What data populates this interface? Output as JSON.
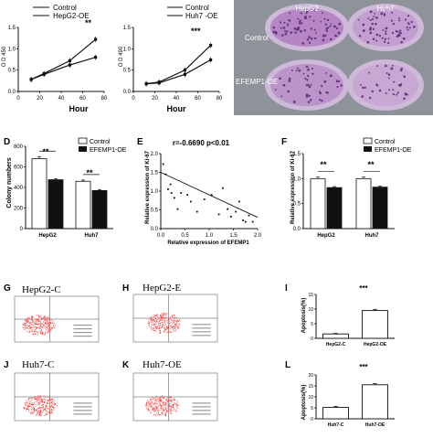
{
  "colors": {
    "control": "#ffffff",
    "oe": "#111111",
    "axis": "#111111",
    "scatter": "#ff2a2a",
    "plate_rim": "#cdb9d8",
    "plate_fill": "#b07dc0",
    "photo_bg": "#9a9ea4"
  },
  "panel_b": {
    "legend_control": "Control",
    "legend_oe": "HepG2-OE",
    "ylabel": "O D 450",
    "xlabel": "Hour",
    "yticks": [
      "0.0",
      "0.5",
      "1.0",
      "1.5"
    ],
    "xticks": [
      "0",
      "20",
      "40",
      "60",
      "80"
    ],
    "sig": "**"
  },
  "panel_c": {
    "legend_control": "Control",
    "legend_oe": "Huh7 -OE",
    "ylabel": "O D 490",
    "xlabel": "Hour",
    "yticks": [
      "0.0",
      "0.5",
      "1.0",
      "1.5"
    ],
    "xticks": [
      "0",
      "20",
      "40",
      "60",
      "80"
    ],
    "sig": "***"
  },
  "panel_photo": {
    "col1": "HepG2",
    "col2": "Huh7",
    "row1": "Control",
    "row2": "EFEMP1-OE"
  },
  "panel_d": {
    "letter": "D",
    "ylabel": "Colony numbers",
    "legend_control": "Control",
    "legend_oe": "EFEMP1-OE",
    "sig1": "**",
    "sig2": "**",
    "yticks": [
      "0",
      "200",
      "400",
      "600",
      "800"
    ]
  },
  "panel_e": {
    "letter": "E",
    "stat": "r=-0.6690 p<0.01",
    "ylabel": "Relative expression of Ki-67",
    "xlabel": "Relative expression of EFEMP1",
    "yticks": [
      "0.0",
      "0.5",
      "1.0",
      "1.5",
      "2.0"
    ],
    "xticks": [
      "0.0",
      "0.5",
      "1.0",
      "1.5",
      "2.0"
    ]
  },
  "panel_f": {
    "letter": "F",
    "ylabel": "Relative expression of Ki-67",
    "legend_control": "Control",
    "legend_oe": "EFEMP1-OE",
    "sig1": "**",
    "sig2": "**",
    "yticks": [
      "0.0",
      "0.5",
      "1.0",
      "1.5"
    ]
  },
  "panel_g": {
    "letter": "G",
    "title": "HepG2-C"
  },
  "panel_h": {
    "letter": "H",
    "title": "HepG2-E"
  },
  "panel_i": {
    "letter": "I",
    "ylabel": "Apoptosis(%)",
    "sig": "***",
    "yticks": [
      "0",
      "5",
      "10",
      "15"
    ]
  },
  "panel_j": {
    "letter": "J",
    "title": "Huh7-C"
  },
  "panel_k": {
    "letter": "K",
    "title": "Huh7-OE"
  },
  "panel_l": {
    "letter": "L",
    "ylabel": "Apoptosis(%)",
    "sig": "***",
    "yticks": [
      "0",
      "5",
      "10",
      "15",
      "20"
    ]
  },
  "chart_data": [
    {
      "panel": "B",
      "type": "line",
      "xlabel": "Hour",
      "ylabel": "O D 450",
      "xlim": [
        0,
        80
      ],
      "ylim": [
        0,
        1.5
      ],
      "series": [
        {
          "name": "Control",
          "x": [
            12,
            24,
            48,
            72
          ],
          "y": [
            0.28,
            0.42,
            0.72,
            1.22
          ]
        },
        {
          "name": "HepG2-OE",
          "x": [
            12,
            24,
            48,
            72
          ],
          "y": [
            0.28,
            0.4,
            0.62,
            0.8
          ]
        }
      ]
    },
    {
      "panel": "C",
      "type": "line",
      "xlabel": "Hour",
      "ylabel": "O D 490",
      "xlim": [
        0,
        80
      ],
      "ylim": [
        0,
        1.5
      ],
      "series": [
        {
          "name": "Control",
          "x": [
            12,
            24,
            48,
            72
          ],
          "y": [
            0.18,
            0.22,
            0.5,
            1.08
          ]
        },
        {
          "name": "Huh7 -OE",
          "x": [
            12,
            24,
            48,
            72
          ],
          "y": [
            0.18,
            0.2,
            0.4,
            0.74
          ]
        }
      ]
    },
    {
      "panel": "D",
      "type": "bar",
      "ylabel": "Colony numbers",
      "categories": [
        "HepG2",
        "Huh7"
      ],
      "ylim": [
        0,
        800
      ],
      "series": [
        {
          "name": "Control",
          "values": [
            680,
            460
          ],
          "errors": [
            20,
            12
          ]
        },
        {
          "name": "EFEMP1-OE",
          "values": [
            475,
            370
          ],
          "errors": [
            10,
            10
          ]
        }
      ]
    },
    {
      "panel": "E",
      "type": "scatter",
      "xlabel": "Relative expression of EFEMP1",
      "ylabel": "Relative expression of Ki-67",
      "xlim": [
        0,
        2
      ],
      "ylim": [
        0,
        2
      ],
      "points": [
        [
          0.05,
          1.72
        ],
        [
          0.1,
          1.45
        ],
        [
          0.15,
          1.05
        ],
        [
          0.2,
          1.18
        ],
        [
          0.22,
          0.95
        ],
        [
          0.28,
          0.82
        ],
        [
          0.35,
          0.52
        ],
        [
          0.42,
          0.95
        ],
        [
          0.55,
          0.9
        ],
        [
          0.62,
          0.72
        ],
        [
          0.75,
          0.45
        ],
        [
          0.9,
          0.78
        ],
        [
          1.05,
          0.9
        ],
        [
          1.2,
          0.38
        ],
        [
          1.28,
          1.08
        ],
        [
          1.38,
          0.52
        ],
        [
          1.45,
          0.32
        ],
        [
          1.55,
          0.45
        ],
        [
          1.62,
          0.72
        ],
        [
          1.7,
          0.22
        ],
        [
          1.75,
          0.18
        ],
        [
          1.82,
          0.35
        ],
        [
          1.9,
          0.18
        ]
      ],
      "fit": {
        "x": [
          0.0,
          2.0
        ],
        "y": [
          1.5,
          0.3
        ]
      }
    },
    {
      "panel": "F",
      "type": "bar",
      "ylabel": "Relative expression of Ki-67",
      "categories": [
        "HepG2",
        "Huh7"
      ],
      "ylim": [
        0,
        1.5
      ],
      "series": [
        {
          "name": "Control",
          "values": [
            1.0,
            1.0
          ],
          "errors": [
            0.03,
            0.03
          ]
        },
        {
          "name": "EFEMP1-OE",
          "values": [
            0.82,
            0.83
          ],
          "errors": [
            0.02,
            0.02
          ]
        }
      ]
    },
    {
      "panel": "I",
      "type": "bar",
      "ylabel": "Apoptosis(%)",
      "categories": [
        "HepG2-C",
        "HepG2-OE"
      ],
      "ylim": [
        0,
        15
      ],
      "series": [
        {
          "name": "",
          "values": [
            1.5,
            9.5
          ],
          "errors": [
            0.2,
            0.4
          ]
        }
      ]
    },
    {
      "panel": "L",
      "type": "bar",
      "ylabel": "Apoptosis(%)",
      "categories": [
        "Huh7-C",
        "Huh7-OE"
      ],
      "ylim": [
        0,
        20
      ],
      "series": [
        {
          "name": "",
          "values": [
            5.2,
            15.5
          ],
          "errors": [
            0.5,
            0.6
          ]
        }
      ]
    }
  ]
}
